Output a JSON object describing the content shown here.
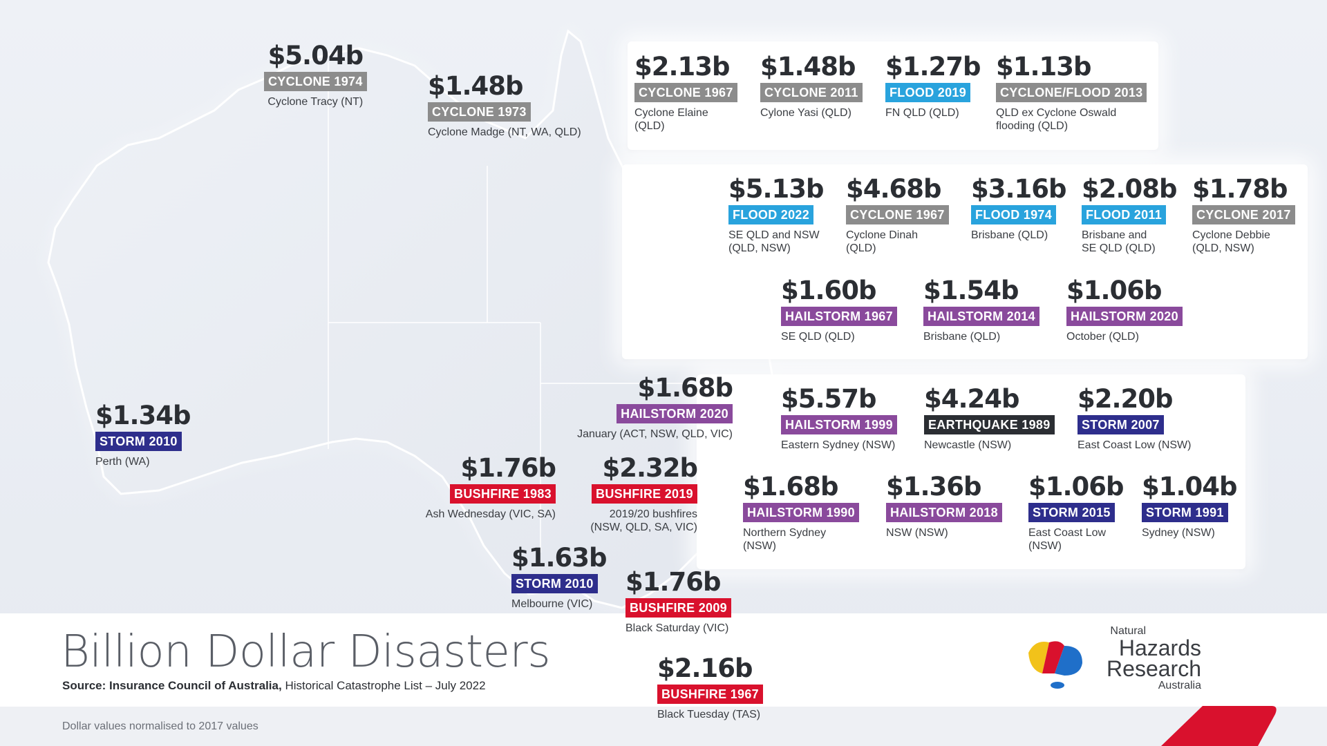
{
  "title": "Billion Dollar Disasters",
  "source_bold": "Source: Insurance Council of Australia,",
  "source_rest": " Historical Catastrophe List – July 2022",
  "footnote": "Dollar values normalised to 2017 values",
  "logo": {
    "line1": "Natural",
    "line2": "Hazards",
    "line3": "Research",
    "line4": "Australia"
  },
  "colors": {
    "cyclone": "#8c8c8c",
    "flood": "#29a3dd",
    "hailstorm": "#8a4a9c",
    "storm": "#2e2e8c",
    "bushfire": "#d9112d",
    "earthquake": "#2b2e33"
  },
  "events": [
    {
      "amount": "$5.04b",
      "label": "CYCLONE 1974",
      "type": "cyclone",
      "location": "Cyclone Tracy (NT)"
    },
    {
      "amount": "$1.48b",
      "label": "CYCLONE 1973",
      "type": "cyclone",
      "location": "Cyclone Madge (NT, WA, QLD)"
    },
    {
      "amount": "$2.13b",
      "label": "CYCLONE 1967",
      "type": "cyclone",
      "location": "Cyclone Elaine\n(QLD)"
    },
    {
      "amount": "$1.48b",
      "label": "CYCLONE 2011",
      "type": "cyclone",
      "location": "Cylone Yasi (QLD)"
    },
    {
      "amount": "$1.27b",
      "label": "FLOOD 2019",
      "type": "flood",
      "location": "FN QLD (QLD)"
    },
    {
      "amount": "$1.13b",
      "label": "CYCLONE/FLOOD 2013",
      "type": "cyclone",
      "location": "QLD ex Cyclone Oswald\nflooding (QLD)"
    },
    {
      "amount": "$5.13b",
      "label": "FLOOD 2022",
      "type": "flood",
      "location": "SE QLD and NSW\n(QLD, NSW)"
    },
    {
      "amount": "$4.68b",
      "label": "CYCLONE 1967",
      "type": "cyclone",
      "location": "Cyclone Dinah\n(QLD)"
    },
    {
      "amount": "$3.16b",
      "label": "FLOOD 1974",
      "type": "flood",
      "location": "Brisbane (QLD)"
    },
    {
      "amount": "$2.08b",
      "label": "FLOOD 2011",
      "type": "flood",
      "location": "Brisbane and\nSE QLD (QLD)"
    },
    {
      "amount": "$1.78b",
      "label": "CYCLONE 2017",
      "type": "cyclone",
      "location": "Cyclone Debbie\n(QLD, NSW)"
    },
    {
      "amount": "$1.60b",
      "label": "HAILSTORM 1967",
      "type": "hailstorm",
      "location": "SE QLD (QLD)"
    },
    {
      "amount": "$1.54b",
      "label": "HAILSTORM 2014",
      "type": "hailstorm",
      "location": "Brisbane (QLD)"
    },
    {
      "amount": "$1.06b",
      "label": "HAILSTORM 2020",
      "type": "hailstorm",
      "location": "October (QLD)"
    },
    {
      "amount": "$1.68b",
      "label": "HAILSTORM 2020",
      "type": "hailstorm",
      "location": "January (ACT, NSW, QLD, VIC)"
    },
    {
      "amount": "$1.34b",
      "label": "STORM 2010",
      "type": "storm",
      "location": "Perth (WA)"
    },
    {
      "amount": "$1.76b",
      "label": "BUSHFIRE 1983",
      "type": "bushfire",
      "location": "Ash Wednesday (VIC, SA)"
    },
    {
      "amount": "$2.32b",
      "label": "BUSHFIRE 2019",
      "type": "bushfire",
      "location": "2019/20 bushfires\n(NSW, QLD, SA, VIC)"
    },
    {
      "amount": "$1.63b",
      "label": "STORM 2010",
      "type": "storm",
      "location": "Melbourne (VIC)"
    },
    {
      "amount": "$1.76b",
      "label": "BUSHFIRE 2009",
      "type": "bushfire",
      "location": "Black Saturday (VIC)"
    },
    {
      "amount": "$2.16b",
      "label": "BUSHFIRE 1967",
      "type": "bushfire",
      "location": "Black Tuesday (TAS)"
    },
    {
      "amount": "$5.57b",
      "label": "HAILSTORM 1999",
      "type": "hailstorm",
      "location": "Eastern Sydney (NSW)"
    },
    {
      "amount": "$4.24b",
      "label": "EARTHQUAKE 1989",
      "type": "earthquake",
      "location": "Newcastle (NSW)"
    },
    {
      "amount": "$2.20b",
      "label": "STORM 2007",
      "type": "storm",
      "location": "East Coast Low (NSW)"
    },
    {
      "amount": "$1.68b",
      "label": "HAILSTORM 1990",
      "type": "hailstorm",
      "location": "Northern Sydney\n(NSW)"
    },
    {
      "amount": "$1.36b",
      "label": "HAILSTORM 2018",
      "type": "hailstorm",
      "location": "NSW (NSW)"
    },
    {
      "amount": "$1.06b",
      "label": "STORM 2015",
      "type": "storm",
      "location": "East Coast Low\n(NSW)"
    },
    {
      "amount": "$1.04b",
      "label": "STORM 1991",
      "type": "storm",
      "location": "Sydney (NSW)"
    }
  ]
}
